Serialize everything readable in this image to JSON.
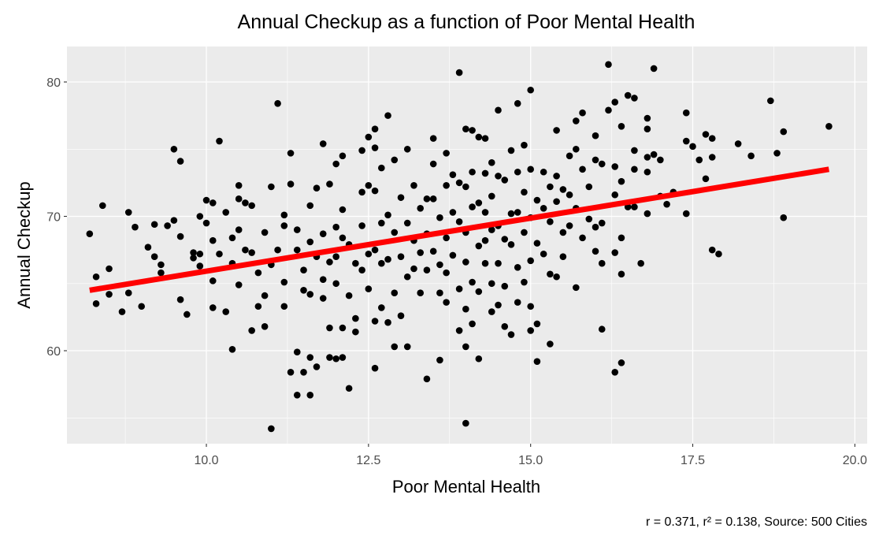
{
  "chart_data": {
    "type": "scatter",
    "title": "Annual Checkup as a function of Poor Mental Health",
    "x_label": "Poor Mental Health",
    "y_label": "Annual Checkup",
    "caption": "r = 0.371, r² = 0.138, Source: 500 Cities",
    "color": "#000000",
    "panel_color": "#ebebeb",
    "grid": true,
    "minor_grid": true,
    "xlim": [
      7.85,
      20.19
    ],
    "ylim": [
      53.08,
      82.64
    ],
    "xticks": [
      {
        "value": 10,
        "label": "10.0"
      },
      12.5,
      {
        "value": 15,
        "label": "15.0"
      },
      17.5,
      {
        "value": 20,
        "label": "20.0"
      }
    ],
    "yticks": [
      60,
      70,
      80
    ],
    "trend_line": {
      "x": [
        8.2,
        19.6
      ],
      "y": [
        64.5,
        73.5
      ],
      "color": "#ff0000"
    },
    "x": [
      8.2,
      8.3,
      8.3,
      8.4,
      8.5,
      8.5,
      8.7,
      8.8,
      8.8,
      8.9,
      9.0,
      9.1,
      9.2,
      9.2,
      9.3,
      9.3,
      9.4,
      9.5,
      9.5,
      9.6,
      9.6,
      9.6,
      9.7,
      9.8,
      9.8,
      9.9,
      9.9,
      9.9,
      10.0,
      10.0,
      10.1,
      10.1,
      10.1,
      10.1,
      10.2,
      10.2,
      10.3,
      10.3,
      10.4,
      10.4,
      10.4,
      10.5,
      10.5,
      10.5,
      10.5,
      10.6,
      10.6,
      10.7,
      10.7,
      10.7,
      10.8,
      10.8,
      10.9,
      10.9,
      10.9,
      11.0,
      11.0,
      11.0,
      11.1,
      11.1,
      11.2,
      11.2,
      11.2,
      11.2,
      11.3,
      11.3,
      11.3,
      11.4,
      11.4,
      11.4,
      11.4,
      11.5,
      11.5,
      11.5,
      11.6,
      11.6,
      11.6,
      11.6,
      11.6,
      11.7,
      11.7,
      11.7,
      11.8,
      11.8,
      11.8,
      11.8,
      11.9,
      11.9,
      11.9,
      11.9,
      12.0,
      12.0,
      12.0,
      12.0,
      12.0,
      12.1,
      12.1,
      12.1,
      12.1,
      12.1,
      12.2,
      12.2,
      12.2,
      12.3,
      12.3,
      12.3,
      12.4,
      12.4,
      12.4,
      12.4,
      12.5,
      12.5,
      12.5,
      12.5,
      12.6,
      12.6,
      12.6,
      12.6,
      12.6,
      12.6,
      12.7,
      12.7,
      12.7,
      12.7,
      12.8,
      12.8,
      12.8,
      12.8,
      12.9,
      12.9,
      12.9,
      12.9,
      13.0,
      13.0,
      13.0,
      13.1,
      13.1,
      13.1,
      13.1,
      13.2,
      13.2,
      13.2,
      13.3,
      13.3,
      13.3,
      13.4,
      13.4,
      13.4,
      13.4,
      13.5,
      13.5,
      13.5,
      13.5,
      13.6,
      13.6,
      13.6,
      13.6,
      13.7,
      13.7,
      13.7,
      13.7,
      13.7,
      13.8,
      13.8,
      13.8,
      13.9,
      13.9,
      13.9,
      13.9,
      13.9,
      14.0,
      14.0,
      14.0,
      14.0,
      14.0,
      14.0,
      14.0,
      14.1,
      14.1,
      14.1,
      14.1,
      14.1,
      14.2,
      14.2,
      14.2,
      14.2,
      14.2,
      14.3,
      14.3,
      14.3,
      14.3,
      14.3,
      14.4,
      14.4,
      14.4,
      14.4,
      14.4,
      14.5,
      14.5,
      14.5,
      14.5,
      14.5,
      14.6,
      14.6,
      14.6,
      14.6,
      14.7,
      14.7,
      14.7,
      14.7,
      14.8,
      14.8,
      14.8,
      14.8,
      14.8,
      14.9,
      14.9,
      14.9,
      14.9,
      15.0,
      15.0,
      15.0,
      15.0,
      15.0,
      15.0,
      15.1,
      15.1,
      15.1,
      15.1,
      15.2,
      15.2,
      15.2,
      15.3,
      15.3,
      15.3,
      15.3,
      15.4,
      15.4,
      15.4,
      15.4,
      15.5,
      15.5,
      15.5,
      15.6,
      15.6,
      15.6,
      15.7,
      15.7,
      15.7,
      15.7,
      15.8,
      15.8,
      15.8,
      15.9,
      15.9,
      16.0,
      16.0,
      16.0,
      16.0,
      16.1,
      16.1,
      16.1,
      16.1,
      16.2,
      16.2,
      16.3,
      16.3,
      16.3,
      16.3,
      16.3,
      16.4,
      16.4,
      16.4,
      16.4,
      16.4,
      16.5,
      16.5,
      16.6,
      16.6,
      16.6,
      16.6,
      16.7,
      16.8,
      16.8,
      16.8,
      16.8,
      16.8,
      16.9,
      16.9,
      17.0,
      17.0,
      17.1,
      17.2,
      17.4,
      17.4,
      17.4,
      17.5,
      17.6,
      17.7,
      17.7,
      17.8,
      17.8,
      17.8,
      17.9,
      18.2,
      18.4,
      18.7,
      18.8,
      18.9,
      18.9,
      19.6
    ],
    "values": [
      68.7,
      65.5,
      63.5,
      70.8,
      66.1,
      64.2,
      62.9,
      70.3,
      64.3,
      69.2,
      63.3,
      67.7,
      69.4,
      67.0,
      66.4,
      65.8,
      69.3,
      75.0,
      69.7,
      74.1,
      68.5,
      63.8,
      62.7,
      67.3,
      66.9,
      70.0,
      67.2,
      66.3,
      71.2,
      69.5,
      71.0,
      68.2,
      65.2,
      63.2,
      75.6,
      67.2,
      70.3,
      62.9,
      68.4,
      66.5,
      60.1,
      72.3,
      71.3,
      69.0,
      64.9,
      71.0,
      67.5,
      70.8,
      67.3,
      61.5,
      65.8,
      63.3,
      68.8,
      64.1,
      61.8,
      72.2,
      66.4,
      54.2,
      78.4,
      67.5,
      70.1,
      69.3,
      65.1,
      63.3,
      74.7,
      72.4,
      58.4,
      69.0,
      67.5,
      59.9,
      56.7,
      66.0,
      64.5,
      58.4,
      70.8,
      68.1,
      64.2,
      59.5,
      56.7,
      72.1,
      67.0,
      58.8,
      75.4,
      68.7,
      65.3,
      63.9,
      72.4,
      66.6,
      61.7,
      59.5,
      73.9,
      69.2,
      67.0,
      65.0,
      59.4,
      74.5,
      70.5,
      68.4,
      61.7,
      59.5,
      67.9,
      64.1,
      57.2,
      66.5,
      62.4,
      61.4,
      74.9,
      71.8,
      69.3,
      66.0,
      75.9,
      72.3,
      67.2,
      64.6,
      76.5,
      75.1,
      71.9,
      67.5,
      62.2,
      58.7,
      73.6,
      69.5,
      66.5,
      63.2,
      77.5,
      70.1,
      66.8,
      62.1,
      74.2,
      68.8,
      64.3,
      60.3,
      71.4,
      67.0,
      62.6,
      75.0,
      69.5,
      65.5,
      60.3,
      72.3,
      68.2,
      66.1,
      70.6,
      67.3,
      64.3,
      71.3,
      68.7,
      66.0,
      57.9,
      75.8,
      73.9,
      71.3,
      67.4,
      69.9,
      66.4,
      64.3,
      59.3,
      74.7,
      72.3,
      68.4,
      65.8,
      63.6,
      73.1,
      70.3,
      67.1,
      80.7,
      72.5,
      69.6,
      64.6,
      61.5,
      76.5,
      72.2,
      68.8,
      66.6,
      63.1,
      60.3,
      54.6,
      76.4,
      73.3,
      70.7,
      65.1,
      62.0,
      75.9,
      71.0,
      67.8,
      64.4,
      59.4,
      75.8,
      73.2,
      70.3,
      68.2,
      66.5,
      74.0,
      71.5,
      69.0,
      65.0,
      62.9,
      77.9,
      73.0,
      69.3,
      66.5,
      63.4,
      72.7,
      68.3,
      64.8,
      61.8,
      74.9,
      70.2,
      67.9,
      61.2,
      78.4,
      73.3,
      70.3,
      66.2,
      63.6,
      75.3,
      71.8,
      68.8,
      65.1,
      79.4,
      73.5,
      69.9,
      66.7,
      63.3,
      61.5,
      71.2,
      68.0,
      62.0,
      59.2,
      73.3,
      70.6,
      67.2,
      72.2,
      69.6,
      65.7,
      60.5,
      76.4,
      73.0,
      71.1,
      65.5,
      72.0,
      68.8,
      67.0,
      74.5,
      71.6,
      69.3,
      77.1,
      75.0,
      70.6,
      64.7,
      77.7,
      73.5,
      68.4,
      72.2,
      69.8,
      76.0,
      74.2,
      69.2,
      67.4,
      73.9,
      69.5,
      66.5,
      61.6,
      81.3,
      77.9,
      78.5,
      73.7,
      71.6,
      67.3,
      58.4,
      76.7,
      72.6,
      68.4,
      65.7,
      59.1,
      79.0,
      70.7,
      78.8,
      74.9,
      73.5,
      70.7,
      66.5,
      77.3,
      76.5,
      74.4,
      73.3,
      70.2,
      81.0,
      74.6,
      74.2,
      71.5,
      70.9,
      71.8,
      77.7,
      75.6,
      70.2,
      75.2,
      74.2,
      76.1,
      72.8,
      75.8,
      74.4,
      67.5,
      67.2,
      75.4,
      74.5,
      78.6,
      74.7,
      76.3,
      69.9,
      76.7
    ]
  }
}
